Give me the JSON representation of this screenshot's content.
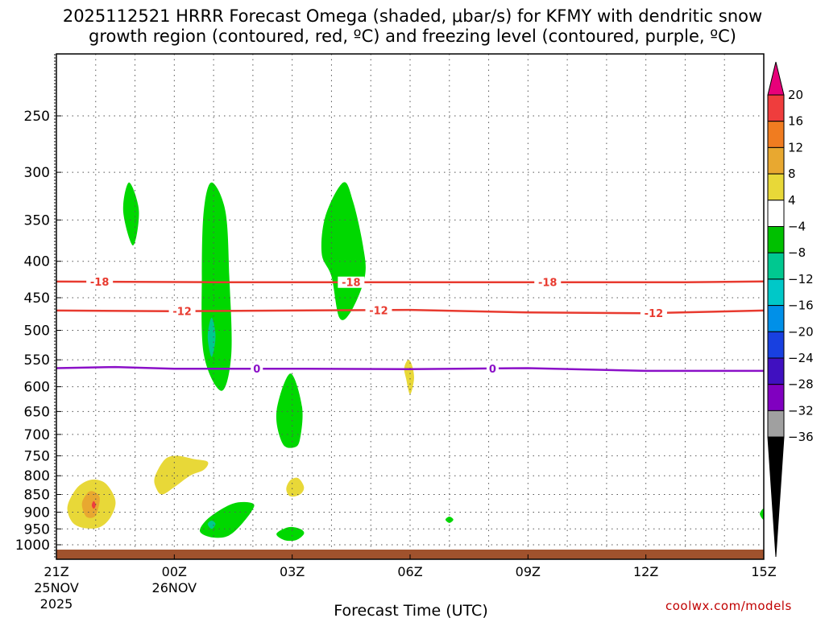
{
  "title_line1": "2025112521 HRRR Forecast Omega (shaded, μbar/s) for KFMY with dendritic snow",
  "title_line2": "growth region (contoured, red, ºC) and freezing level (contoured, purple, ºC)",
  "credit": "coolwx.com/models",
  "chart_data": {
    "type": "time-height cross section",
    "xlabel": "Forecast Time (UTC)",
    "ylabel": "",
    "x_ticks": [
      {
        "hour": 0,
        "label": "21Z",
        "sub": [
          "25NOV",
          "2025"
        ]
      },
      {
        "hour": 3,
        "label": "00Z",
        "sub": [
          "26NOV"
        ]
      },
      {
        "hour": 6,
        "label": "03Z",
        "sub": []
      },
      {
        "hour": 9,
        "label": "06Z",
        "sub": []
      },
      {
        "hour": 12,
        "label": "09Z",
        "sub": []
      },
      {
        "hour": 15,
        "label": "12Z",
        "sub": []
      },
      {
        "hour": 18,
        "label": "15Z",
        "sub": []
      }
    ],
    "x_range_hours": [
      0,
      18
    ],
    "y_range_hPa": [
      1030,
      200
    ],
    "y_ticks": [
      250,
      300,
      350,
      400,
      450,
      500,
      550,
      600,
      650,
      700,
      750,
      800,
      850,
      900,
      950,
      1000
    ],
    "contours": [
      {
        "name": "dgz -18C",
        "level": -18,
        "color": "#e83a2f",
        "points": [
          [
            0,
            427
          ],
          [
            4,
            428
          ],
          [
            8,
            428
          ],
          [
            12,
            428
          ],
          [
            16,
            428
          ],
          [
            18,
            427
          ]
        ],
        "labels": [
          {
            "hour": 1.1,
            "text": "-18"
          },
          {
            "hour": 7.5,
            "text": "-18"
          },
          {
            "hour": 12.5,
            "text": "-18"
          }
        ]
      },
      {
        "name": "dgz -12C",
        "level": -12,
        "color": "#e83a2f",
        "points": [
          [
            0,
            469
          ],
          [
            3,
            470
          ],
          [
            6,
            469
          ],
          [
            9,
            468
          ],
          [
            12,
            472
          ],
          [
            15,
            473
          ],
          [
            18,
            469
          ]
        ],
        "labels": [
          {
            "hour": 3.2,
            "text": "-12"
          },
          {
            "hour": 8.2,
            "text": "-12"
          },
          {
            "hour": 15.2,
            "text": "-12"
          }
        ]
      },
      {
        "name": "freezing level",
        "level": 0,
        "color": "#8b10c8",
        "points": [
          [
            0,
            565
          ],
          [
            1.5,
            563
          ],
          [
            3,
            566
          ],
          [
            6,
            566
          ],
          [
            9,
            567
          ],
          [
            12,
            565
          ],
          [
            15,
            570
          ],
          [
            18,
            570
          ]
        ],
        "labels": [
          {
            "hour": 5.1,
            "text": "0"
          },
          {
            "hour": 11.1,
            "text": "0"
          }
        ]
      }
    ],
    "omega_areas": [
      {
        "value": -6,
        "poly": [
          [
            1.85,
            310
          ],
          [
            2.1,
            340
          ],
          [
            1.95,
            380
          ],
          [
            1.7,
            340
          ]
        ]
      },
      {
        "value": -6,
        "poly": [
          [
            3.95,
            310
          ],
          [
            4.3,
            340
          ],
          [
            4.4,
            420
          ],
          [
            4.45,
            540
          ],
          [
            4.2,
            608
          ],
          [
            3.75,
            540
          ],
          [
            3.7,
            420
          ],
          [
            3.75,
            340
          ]
        ]
      },
      {
        "value": -10,
        "poly": [
          [
            3.95,
            480
          ],
          [
            4.05,
            510
          ],
          [
            3.95,
            545
          ],
          [
            3.85,
            510
          ]
        ]
      },
      {
        "value": -6,
        "poly": [
          [
            3.65,
            955
          ],
          [
            3.9,
            915
          ],
          [
            4.5,
            875
          ],
          [
            5.0,
            875
          ],
          [
            4.95,
            900
          ],
          [
            4.6,
            950
          ],
          [
            4.3,
            975
          ],
          [
            3.9,
            975
          ]
        ]
      },
      {
        "value": -10,
        "poly": [
          [
            3.95,
            925
          ],
          [
            4.05,
            935
          ],
          [
            3.95,
            950
          ],
          [
            3.85,
            935
          ]
        ]
      },
      {
        "value": -6,
        "poly": [
          [
            5.95,
            575
          ],
          [
            6.25,
            640
          ],
          [
            6.2,
            710
          ],
          [
            6.05,
            730
          ],
          [
            5.75,
            720
          ],
          [
            5.6,
            650
          ]
        ]
      },
      {
        "value": -6,
        "poly": [
          [
            5.6,
            965
          ],
          [
            5.9,
            945
          ],
          [
            6.2,
            950
          ],
          [
            6.3,
            965
          ],
          [
            6.1,
            985
          ],
          [
            5.8,
            985
          ]
        ]
      },
      {
        "value": -6,
        "poly": [
          [
            7.3,
            310
          ],
          [
            7.55,
            330
          ],
          [
            7.8,
            380
          ],
          [
            7.85,
            420
          ],
          [
            7.5,
            470
          ],
          [
            7.2,
            480
          ],
          [
            7.0,
            420
          ],
          [
            6.75,
            390
          ],
          [
            6.85,
            345
          ]
        ]
      },
      {
        "value": -6,
        "poly": [
          [
            10.0,
            913
          ],
          [
            10.1,
            922
          ],
          [
            10.0,
            932
          ],
          [
            9.9,
            922
          ]
        ]
      },
      {
        "value": -6,
        "poly": [
          [
            18.0,
            890
          ],
          [
            17.9,
            905
          ],
          [
            18.0,
            922
          ]
        ]
      }
    ],
    "omega_positive": [
      {
        "value": 6,
        "poly": [
          [
            0.3,
            875
          ],
          [
            0.5,
            835
          ],
          [
            0.75,
            815
          ],
          [
            1.0,
            810
          ],
          [
            1.25,
            820
          ],
          [
            1.45,
            850
          ],
          [
            1.5,
            880
          ],
          [
            1.35,
            920
          ],
          [
            1.1,
            945
          ],
          [
            0.75,
            948
          ],
          [
            0.45,
            935
          ],
          [
            0.3,
            905
          ]
        ]
      },
      {
        "value": 10,
        "poly": [
          [
            0.65,
            875
          ],
          [
            0.8,
            845
          ],
          [
            0.95,
            842
          ],
          [
            1.1,
            858
          ],
          [
            1.05,
            895
          ],
          [
            0.95,
            915
          ],
          [
            0.75,
            912
          ]
        ]
      },
      {
        "value": 18,
        "poly": [
          [
            0.95,
            868
          ],
          [
            1.0,
            880
          ],
          [
            0.95,
            890
          ],
          [
            0.9,
            880
          ]
        ]
      },
      {
        "value": 6,
        "poly": [
          [
            2.5,
            805
          ],
          [
            2.75,
            760
          ],
          [
            3.05,
            750
          ],
          [
            3.5,
            758
          ],
          [
            3.85,
            765
          ],
          [
            3.75,
            785
          ],
          [
            3.4,
            800
          ],
          [
            3.0,
            830
          ],
          [
            2.7,
            850
          ],
          [
            2.55,
            835
          ]
        ]
      },
      {
        "value": 6,
        "poly": [
          [
            5.85,
            835
          ],
          [
            5.95,
            812
          ],
          [
            6.15,
            806
          ],
          [
            6.3,
            830
          ],
          [
            6.2,
            850
          ],
          [
            5.95,
            855
          ]
        ]
      },
      {
        "value": 6,
        "poly": [
          [
            8.95,
            550
          ],
          [
            9.05,
            560
          ],
          [
            9.1,
            585
          ],
          [
            9.0,
            615
          ],
          [
            8.9,
            585
          ],
          [
            8.85,
            565
          ]
        ]
      }
    ],
    "colorbar": {
      "levels": [
        "20",
        "16",
        "12",
        "8",
        "4",
        "-4",
        "-8",
        "-12",
        "-16",
        "-20",
        "-24",
        "-28",
        "-32",
        "-36"
      ],
      "colors": [
        "#e8007a",
        "#ef3d3d",
        "#f07c20",
        "#e8a830",
        "#e8d838",
        "#ffffff",
        "#00c000",
        "#00c890",
        "#00c8c8",
        "#0090e8",
        "#1840e0",
        "#4010c0",
        "#8000c0",
        "#a0a0a0",
        "#000000"
      ]
    },
    "ground_color": "#a0522d"
  }
}
